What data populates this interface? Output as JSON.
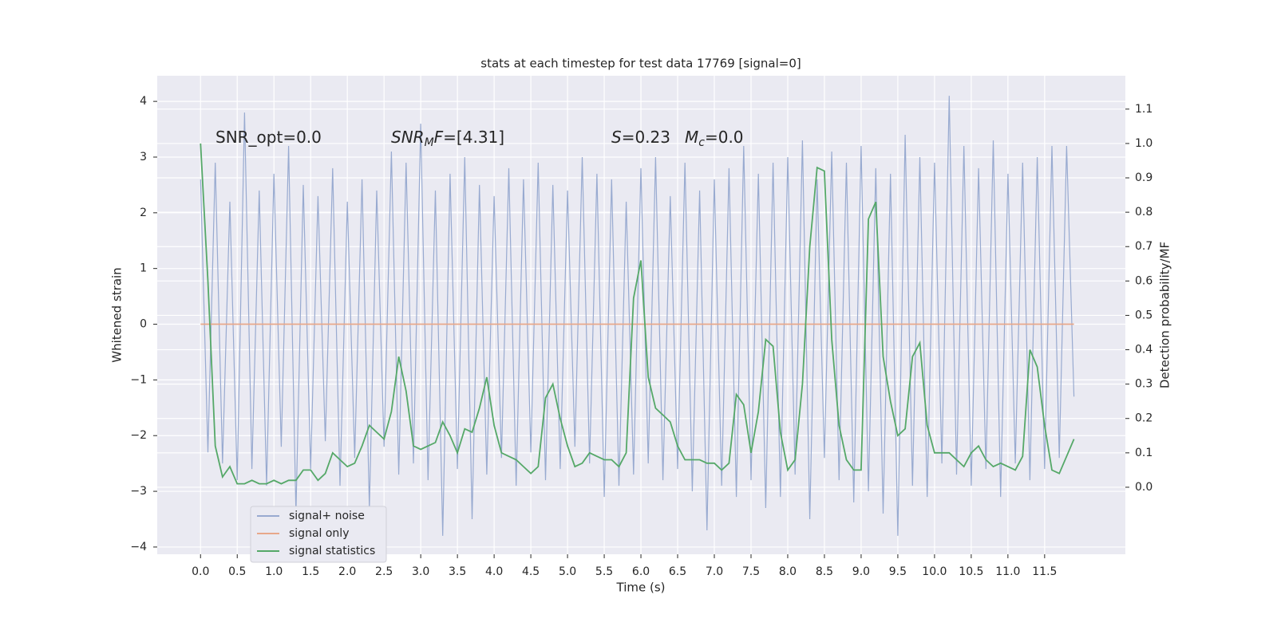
{
  "chart_data": {
    "type": "line",
    "title": "stats at each timestep for test data 17769 [signal=0]",
    "xlabel": "Time (s)",
    "ylabel": "Whitened strain",
    "y2label": "Detection probability/MF",
    "annotations": [
      [
        {
          "text": "SNR_opt=0.0"
        }
      ],
      [
        {
          "text": "SNR",
          "style": "italic"
        },
        {
          "text": "M",
          "style": "italic-sub"
        },
        {
          "text": "F",
          "style": "italic"
        },
        {
          "text": "=[4.31]"
        }
      ],
      [
        {
          "text": "S",
          "style": "italic"
        },
        {
          "text": "=0.23"
        }
      ],
      [
        {
          "text": "M",
          "style": "italic"
        },
        {
          "text": "c",
          "style": "italic-sub"
        },
        {
          "text": "=0.0"
        }
      ]
    ],
    "x": [
      0.0,
      0.1,
      0.2,
      0.3,
      0.4,
      0.5,
      0.6,
      0.7,
      0.8,
      0.9,
      1.0,
      1.1,
      1.2,
      1.3,
      1.4,
      1.5,
      1.6,
      1.7,
      1.8,
      1.9,
      2.0,
      2.1,
      2.2,
      2.3,
      2.4,
      2.5,
      2.6,
      2.7,
      2.8,
      2.9,
      3.0,
      3.1,
      3.2,
      3.3,
      3.4,
      3.5,
      3.6,
      3.7,
      3.8,
      3.9,
      4.0,
      4.1,
      4.2,
      4.3,
      4.4,
      4.5,
      4.6,
      4.7,
      4.8,
      4.9,
      5.0,
      5.1,
      5.2,
      5.3,
      5.4,
      5.5,
      5.6,
      5.7,
      5.8,
      5.9,
      6.0,
      6.1,
      6.2,
      6.3,
      6.4,
      6.5,
      6.6,
      6.7,
      6.8,
      6.9,
      7.0,
      7.1,
      7.2,
      7.3,
      7.4,
      7.5,
      7.6,
      7.7,
      7.8,
      7.9,
      8.0,
      8.1,
      8.2,
      8.3,
      8.4,
      8.5,
      8.6,
      8.7,
      8.8,
      8.9,
      9.0,
      9.1,
      9.2,
      9.3,
      9.4,
      9.5,
      9.6,
      9.7,
      9.8,
      9.9,
      10.0,
      10.1,
      10.2,
      10.3,
      10.4,
      10.5,
      10.6,
      10.7,
      10.8,
      10.9,
      11.0,
      11.1,
      11.2,
      11.3,
      11.4,
      11.5,
      11.6,
      11.7,
      11.8,
      11.9
    ],
    "series": [
      {
        "name": "signal+ noise",
        "color": "#98aad0",
        "values": [
          2.6,
          -2.3,
          2.9,
          -2.5,
          2.2,
          -2.8,
          3.8,
          -2.6,
          2.4,
          -2.9,
          2.7,
          -2.2,
          3.2,
          -3.4,
          2.5,
          -2.6,
          2.3,
          -2.1,
          2.8,
          -2.9,
          2.2,
          -2.4,
          2.6,
          -3.3,
          2.4,
          -2.2,
          3.1,
          -2.7,
          2.9,
          -2.5,
          3.6,
          -2.8,
          2.4,
          -3.8,
          2.7,
          -2.6,
          3.0,
          -3.5,
          2.5,
          -2.7,
          2.3,
          -2.4,
          2.8,
          -2.9,
          2.6,
          -2.3,
          2.9,
          -2.8,
          2.5,
          -2.6,
          2.4,
          -2.2,
          3.0,
          -2.5,
          2.7,
          -3.1,
          2.6,
          -2.9,
          2.2,
          -2.7,
          2.8,
          -2.5,
          3.0,
          -2.8,
          2.3,
          -2.6,
          2.9,
          -3.0,
          2.4,
          -3.7,
          2.6,
          -2.9,
          2.8,
          -3.1,
          3.2,
          -2.8,
          2.7,
          -3.3,
          2.9,
          -3.1,
          3.0,
          -2.7,
          3.3,
          -3.5,
          2.6,
          -2.4,
          3.1,
          -2.8,
          2.9,
          -3.2,
          3.2,
          -3.0,
          2.8,
          -3.4,
          2.7,
          -3.8,
          3.4,
          -2.9,
          3.0,
          -3.1,
          2.9,
          -2.5,
          4.1,
          -2.7,
          3.2,
          -2.9,
          2.8,
          -2.6,
          3.3,
          -3.1,
          2.7,
          -2.5,
          2.9,
          -2.8,
          3.0,
          -2.6,
          3.2,
          -2.4,
          3.2,
          -1.3
        ]
      },
      {
        "name": "signal only",
        "color": "#e8a88a",
        "values": [
          0,
          0,
          0,
          0,
          0,
          0,
          0,
          0,
          0,
          0,
          0,
          0,
          0,
          0,
          0,
          0,
          0,
          0,
          0,
          0,
          0,
          0,
          0,
          0,
          0,
          0,
          0,
          0,
          0,
          0,
          0,
          0,
          0,
          0,
          0,
          0,
          0,
          0,
          0,
          0,
          0,
          0,
          0,
          0,
          0,
          0,
          0,
          0,
          0,
          0,
          0,
          0,
          0,
          0,
          0,
          0,
          0,
          0,
          0,
          0,
          0,
          0,
          0,
          0,
          0,
          0,
          0,
          0,
          0,
          0,
          0,
          0,
          0,
          0,
          0,
          0,
          0,
          0,
          0,
          0,
          0,
          0,
          0,
          0,
          0,
          0,
          0,
          0,
          0,
          0,
          0,
          0,
          0,
          0,
          0,
          0,
          0,
          0,
          0,
          0,
          0,
          0,
          0,
          0,
          0,
          0,
          0,
          0,
          0,
          0,
          0,
          0,
          0,
          0,
          0,
          0,
          0,
          0,
          0,
          0
        ]
      },
      {
        "name": "signal statistics",
        "color": "#55a868",
        "axis": "y2",
        "values": [
          1.0,
          0.6,
          0.12,
          0.03,
          0.06,
          0.01,
          0.01,
          0.02,
          0.01,
          0.01,
          0.02,
          0.01,
          0.02,
          0.02,
          0.05,
          0.05,
          0.02,
          0.04,
          0.1,
          0.08,
          0.06,
          0.07,
          0.12,
          0.18,
          0.16,
          0.14,
          0.22,
          0.38,
          0.28,
          0.12,
          0.11,
          0.12,
          0.13,
          0.19,
          0.15,
          0.1,
          0.17,
          0.16,
          0.23,
          0.32,
          0.18,
          0.1,
          0.09,
          0.08,
          0.06,
          0.04,
          0.06,
          0.26,
          0.3,
          0.2,
          0.12,
          0.06,
          0.07,
          0.1,
          0.09,
          0.08,
          0.08,
          0.06,
          0.1,
          0.55,
          0.66,
          0.32,
          0.23,
          0.21,
          0.19,
          0.12,
          0.08,
          0.08,
          0.08,
          0.07,
          0.07,
          0.05,
          0.07,
          0.27,
          0.24,
          0.1,
          0.22,
          0.43,
          0.41,
          0.16,
          0.05,
          0.08,
          0.3,
          0.7,
          0.93,
          0.92,
          0.43,
          0.18,
          0.08,
          0.05,
          0.05,
          0.78,
          0.83,
          0.38,
          0.25,
          0.15,
          0.17,
          0.38,
          0.42,
          0.18,
          0.1,
          0.1,
          0.1,
          0.08,
          0.06,
          0.1,
          0.12,
          0.08,
          0.06,
          0.07,
          0.06,
          0.05,
          0.09,
          0.4,
          0.35,
          0.18,
          0.05,
          0.04,
          0.09,
          0.14
        ]
      }
    ],
    "xlim": [
      -0.59,
      12.6
    ],
    "ylim": [
      -4.13,
      4.46
    ],
    "y2lim": [
      -0.195,
      1.197
    ],
    "xticks": [
      {
        "value": 0,
        "label": "0.0"
      },
      0.5,
      {
        "value": 1,
        "label": "1.0"
      },
      1.5,
      {
        "value": 2,
        "label": "2.0"
      },
      2.5,
      {
        "value": 3,
        "label": "3.0"
      },
      3.5,
      {
        "value": 4,
        "label": "4.0"
      },
      4.5,
      {
        "value": 5,
        "label": "5.0"
      },
      5.5,
      {
        "value": 6,
        "label": "6.0"
      },
      6.5,
      {
        "value": 7,
        "label": "7.0"
      },
      7.5,
      {
        "value": 8,
        "label": "8.0"
      },
      8.5,
      {
        "value": 9,
        "label": "9.0"
      },
      9.5,
      {
        "value": 10,
        "label": "10.0"
      },
      10.5,
      {
        "value": 11,
        "label": "11.0"
      },
      11.5
    ],
    "yticks": [
      {
        "value": -4,
        "label": "−4"
      },
      {
        "value": -3,
        "label": "−3"
      },
      {
        "value": -2,
        "label": "−2"
      },
      {
        "value": -1,
        "label": "−1"
      },
      0,
      1,
      2,
      3,
      4
    ],
    "y2ticks": [
      {
        "value": 0,
        "label": "0.0"
      },
      0.1,
      0.2,
      0.3,
      0.4,
      0.5,
      0.6,
      0.7,
      0.8,
      0.9,
      {
        "value": 1,
        "label": "1.0"
      },
      1.1
    ],
    "grid": true,
    "legend": "lower left"
  }
}
